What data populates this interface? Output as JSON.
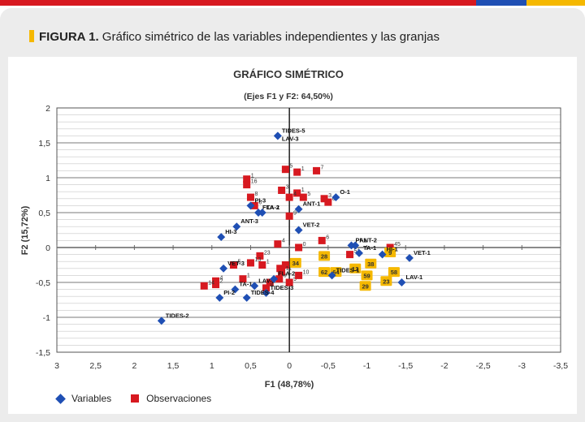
{
  "figure": {
    "label": "FIGURA 1.",
    "caption": " Gráfico simétrico de las variables independientes y las granjas"
  },
  "colors": {
    "accent_bar": "#f5b800",
    "topbar": [
      "#d71920",
      "#1f4fb4",
      "#f5b800"
    ],
    "variables": "#1f4fb4",
    "observations": "#d71920",
    "highlight": "#f5b800"
  },
  "chart_data": {
    "type": "scatter",
    "title": "GRÁFICO SIMÉTRICO",
    "subtitle": "(Ejes F1 y F2: 64,50%)",
    "xlabel": "F1 (48,78%)",
    "ylabel": "F2 (15,72%)",
    "xlim": [
      3,
      -3.5
    ],
    "ylim": [
      -1.5,
      2
    ],
    "x_reversed": true,
    "x_ticks": [
      "3",
      "2,5",
      "2",
      "1,5",
      "1",
      "0,5",
      "0",
      "-0,5",
      "-1",
      "-1,5",
      "-2",
      "-2,5",
      "-3",
      "-3,5"
    ],
    "x_tick_values": [
      3,
      2.5,
      2,
      1.5,
      1,
      0.5,
      0,
      -0.5,
      -1,
      -1.5,
      -2,
      -2.5,
      -3,
      -3.5
    ],
    "y_ticks": [
      "2",
      "1,5",
      "1",
      "0,5",
      "0",
      "-0,5",
      "-1",
      "-1,5"
    ],
    "y_tick_values": [
      2,
      1.5,
      1,
      0.5,
      0,
      -0.5,
      -1,
      -1.5
    ],
    "grid": true,
    "legend": [
      "Variables",
      "Observaciones"
    ],
    "legend_position": "bottom-left",
    "series": [
      {
        "name": "Variables",
        "marker": "diamond",
        "points": [
          {
            "label": "TIDES-5",
            "x": 0.15,
            "y": 1.6
          },
          {
            "label": "LAV-3",
            "x": 0.15,
            "y": 1.6
          },
          {
            "label": "ANT-1",
            "x": -0.12,
            "y": 0.55
          },
          {
            "label": "O-1",
            "x": -0.6,
            "y": 0.72
          },
          {
            "label": "FLA-1",
            "x": 0.4,
            "y": 0.5
          },
          {
            "label": "TA-2",
            "x": 0.35,
            "y": 0.5
          },
          {
            "label": "ANT-3",
            "x": 0.68,
            "y": 0.3
          },
          {
            "label": "HI-3",
            "x": 0.88,
            "y": 0.15
          },
          {
            "label": "VET-2",
            "x": -0.12,
            "y": 0.25
          },
          {
            "label": "ANT-2",
            "x": -0.85,
            "y": 0.03
          },
          {
            "label": "PI-1",
            "x": -0.8,
            "y": 0.03
          },
          {
            "label": "TA-1",
            "x": -0.9,
            "y": -0.08
          },
          {
            "label": "HI-1",
            "x": -1.2,
            "y": -0.1
          },
          {
            "label": "VET-1",
            "x": -1.55,
            "y": -0.15
          },
          {
            "label": "LAV-1",
            "x": -1.45,
            "y": -0.5
          },
          {
            "label": "TIDES-1",
            "x": -0.55,
            "y": -0.4
          },
          {
            "label": "TA-1",
            "x": 0.7,
            "y": -0.6
          },
          {
            "label": "LAV-2",
            "x": 0.45,
            "y": -0.55
          },
          {
            "label": "TIDES-3",
            "x": 0.3,
            "y": -0.65
          },
          {
            "label": "TIDES-4",
            "x": 0.55,
            "y": -0.72
          },
          {
            "label": "PI-2",
            "x": 0.9,
            "y": -0.72
          },
          {
            "label": "VET-3",
            "x": 0.85,
            "y": -0.3
          },
          {
            "label": "PI-3",
            "x": 0.5,
            "y": 0.6
          },
          {
            "label": "FLA-2",
            "x": 0.2,
            "y": -0.45
          },
          {
            "label": "TIDES-2",
            "x": 1.65,
            "y": -1.05
          }
        ]
      },
      {
        "name": "Observaciones",
        "marker": "square",
        "points": [
          {
            "label": "5",
            "x": 0.05,
            "y": 1.12
          },
          {
            "label": "1",
            "x": -0.1,
            "y": 1.08
          },
          {
            "label": "7",
            "x": -0.35,
            "y": 1.1
          },
          {
            "label": "1",
            "x": 0.55,
            "y": 0.98
          },
          {
            "label": "16",
            "x": 0.55,
            "y": 0.9
          },
          {
            "label": "3",
            "x": 0.1,
            "y": 0.82
          },
          {
            "label": "1",
            "x": -0.1,
            "y": 0.78
          },
          {
            "label": "5",
            "x": -0.18,
            "y": 0.72
          },
          {
            "label": "4",
            "x": 0.0,
            "y": 0.72
          },
          {
            "label": "3",
            "x": -0.45,
            "y": 0.7
          },
          {
            "label": "0",
            "x": -0.5,
            "y": 0.65
          },
          {
            "label": "8",
            "x": 0.5,
            "y": 0.72
          },
          {
            "label": "6",
            "x": 0.45,
            "y": 0.6
          },
          {
            "label": "9",
            "x": 0.0,
            "y": 0.45
          },
          {
            "label": "6",
            "x": -0.42,
            "y": 0.1
          },
          {
            "label": "4",
            "x": 0.15,
            "y": 0.05
          },
          {
            "label": "0",
            "x": -0.12,
            "y": 0.0
          },
          {
            "label": "45",
            "x": -1.3,
            "y": 0.0
          },
          {
            "label": "23",
            "x": 0.38,
            "y": -0.12
          },
          {
            "label": "1",
            "x": 0.35,
            "y": -0.25
          },
          {
            "label": "5",
            "x": 0.72,
            "y": -0.25
          },
          {
            "label": "17",
            "x": 0.12,
            "y": -0.3
          },
          {
            "label": "6",
            "x": 0.05,
            "y": -0.25
          },
          {
            "label": "51",
            "x": -0.78,
            "y": -0.1
          },
          {
            "label": "4",
            "x": 0.95,
            "y": -0.48
          },
          {
            "label": "2",
            "x": 0.95,
            "y": -0.53
          },
          {
            "label": "1",
            "x": 0.6,
            "y": -0.45
          },
          {
            "label": "3",
            "x": 0.25,
            "y": -0.5
          },
          {
            "label": "8",
            "x": 0.3,
            "y": -0.58
          },
          {
            "label": "9",
            "x": 0.0,
            "y": -0.5
          },
          {
            "label": "6",
            "x": 0.13,
            "y": -0.45
          },
          {
            "label": "11",
            "x": 0.1,
            "y": -0.35
          },
          {
            "label": "14",
            "x": 1.1,
            "y": -0.55
          },
          {
            "label": "13",
            "x": 0.5,
            "y": -0.22
          },
          {
            "label": "10",
            "x": -0.12,
            "y": -0.4
          }
        ],
        "highlighted": [
          {
            "label": "34",
            "x": -0.08,
            "y": -0.22
          },
          {
            "label": "28",
            "x": -0.45,
            "y": -0.12
          },
          {
            "label": "62",
            "x": -0.45,
            "y": -0.35
          },
          {
            "label": "64",
            "x": -0.6,
            "y": -0.35
          },
          {
            "label": "12",
            "x": -0.85,
            "y": -0.3
          },
          {
            "label": "59",
            "x": -1.0,
            "y": -0.4
          },
          {
            "label": "38",
            "x": -1.05,
            "y": -0.23
          },
          {
            "label": "9",
            "x": -1.3,
            "y": -0.07
          },
          {
            "label": "58",
            "x": -1.35,
            "y": -0.35
          },
          {
            "label": "29",
            "x": -0.98,
            "y": -0.55
          },
          {
            "label": "23",
            "x": -1.25,
            "y": -0.48
          }
        ]
      }
    ]
  },
  "legend_items": {
    "variables": "Variables",
    "observations": "Observaciones"
  }
}
